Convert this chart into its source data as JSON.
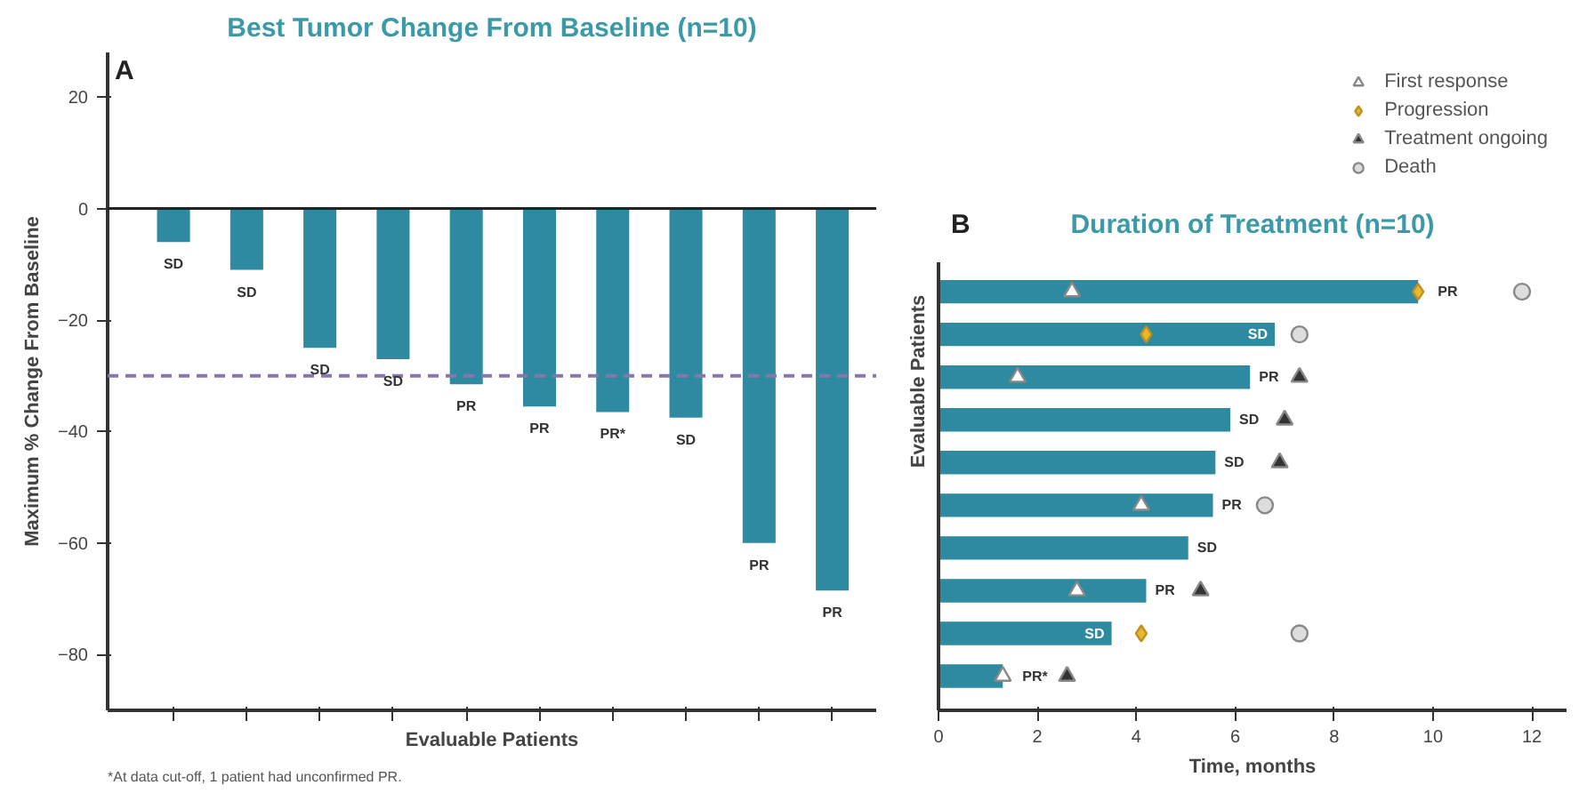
{
  "chart_data": [
    {
      "type": "bar",
      "title": "Best Tumor Change From Baseline (n=10)",
      "ylabel": "Maximum % Change From Baseline",
      "xlabel": "Evaluable Patients",
      "categories": [
        null,
        null,
        null,
        null,
        null,
        null,
        null,
        null,
        null,
        null
      ],
      "color": "#2e8aa0",
      "values": [
        -6,
        -11,
        -25,
        -27,
        -31.5,
        -35.5,
        -36.5,
        -37.5,
        -60,
        -68.5
      ],
      "value_labels": [
        "SD",
        "SD",
        "SD",
        "SD",
        "PR",
        "PR",
        "PR*",
        "SD",
        "PR",
        "PR"
      ],
      "ylim": [
        -90,
        28
      ],
      "yticks": [
        20,
        0,
        -20,
        -40,
        -60,
        -80
      ],
      "tick_labels": "y",
      "grid": false,
      "ref_lines": [
        {
          "axis": "y",
          "value": 0,
          "color": "#222222",
          "line_style": "solid"
        },
        {
          "axis": "y",
          "value": -30,
          "color": "#8877aa",
          "line_style": "dashed"
        }
      ],
      "annotations": [
        "A",
        "*At data cut-off, 1 patient had unconfirmed PR."
      ]
    },
    {
      "type": "bar",
      "orientation": "horizontal",
      "title": "Duration of Treatment (n=10)",
      "xlabel": "Time, months",
      "ylabel": "Evaluable Patients",
      "categories": [
        null,
        null,
        null,
        null,
        null,
        null,
        null,
        null,
        null,
        null
      ],
      "xlim": [
        0,
        12.7
      ],
      "xticks": [
        0,
        2,
        4,
        6,
        8,
        10,
        12
      ],
      "tick_labels": "x",
      "grid": false,
      "legend": "top right",
      "annotations": [
        "B"
      ],
      "series": [
        {
          "type": "bar",
          "color": "#2e8aa0",
          "values": [
            9.7,
            6.8,
            6.3,
            5.9,
            5.6,
            5.55,
            5.05,
            4.2,
            3.5,
            1.3
          ],
          "value_labels": [
            "PR",
            "SD",
            "PR",
            "SD",
            "SD",
            "PR",
            "SD",
            "PR",
            "SD",
            "PR*"
          ]
        },
        {
          "type": "scatter",
          "name": "First response",
          "marker": "triangle",
          "color": "#ffffff",
          "values": [
            2.7,
            null,
            1.6,
            null,
            null,
            4.1,
            null,
            2.8,
            null,
            1.3
          ]
        },
        {
          "type": "scatter",
          "name": "Progression",
          "marker": "diamond",
          "color": "#e8b830",
          "values": [
            9.7,
            4.2,
            null,
            null,
            null,
            null,
            null,
            null,
            4.1,
            null
          ]
        },
        {
          "type": "scatter",
          "name": "Treatment ongoing",
          "marker": "triangle",
          "color": "#333333",
          "values": [
            null,
            null,
            7.3,
            7.0,
            6.9,
            null,
            null,
            5.3,
            null,
            2.6
          ]
        },
        {
          "type": "scatter",
          "name": "Death",
          "marker": "circle",
          "color": "#dddddd",
          "values": [
            11.8,
            7.3,
            null,
            null,
            null,
            6.6,
            null,
            null,
            7.3,
            null
          ]
        }
      ]
    }
  ]
}
